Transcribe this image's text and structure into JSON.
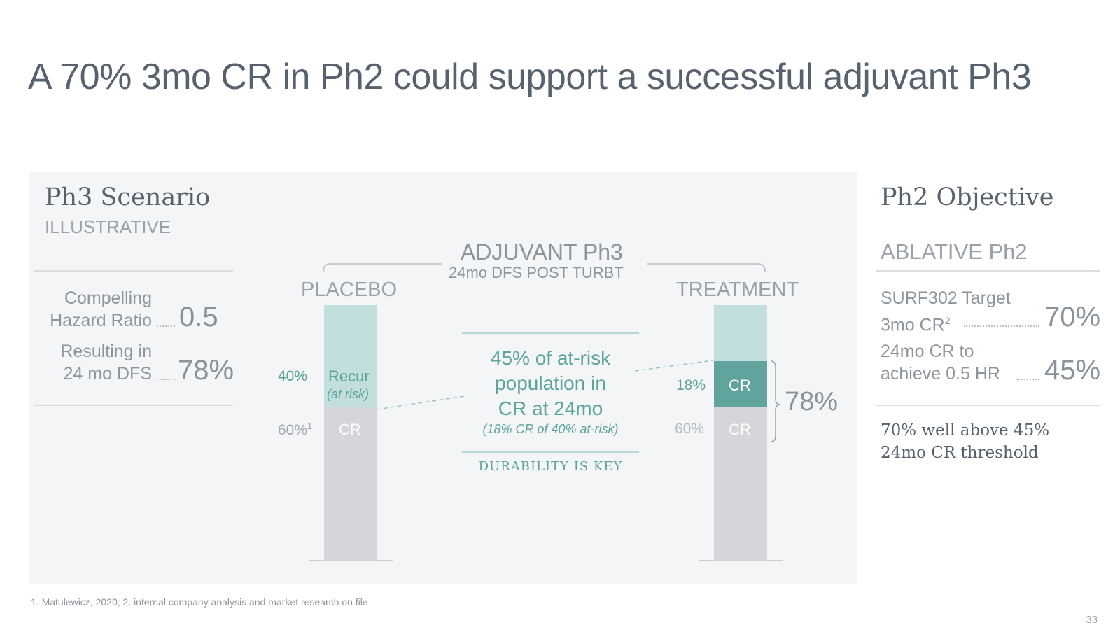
{
  "title": "A 70% 3mo CR in Ph2 could support a successful adjuvant Ph3",
  "left": {
    "heading": "Ph3 Scenario",
    "subheading": "ILLUSTRATIVE",
    "rows": [
      {
        "label_line1": "Compelling",
        "label_line2": "Hazard Ratio",
        "value": "0.5"
      },
      {
        "label_line1": "Resulting in",
        "label_line2": "24 mo DFS",
        "value": "78%"
      }
    ]
  },
  "center": {
    "heading": "ADJUVANT Ph3",
    "subheading": "24mo DFS POST TURBT",
    "placebo": {
      "label": "PLACEBO",
      "recur_pct": "40%",
      "recur_label": "Recur",
      "recur_note": "(at risk)",
      "cr_pct": "60%",
      "cr_sup": "1",
      "cr_label": "CR"
    },
    "treatment": {
      "label": "TREATMENT",
      "cr_new_pct": "18%",
      "cr_new_label": "CR",
      "cr_pct": "60%",
      "cr_label": "CR",
      "total": "78%"
    },
    "callout": {
      "line1": "45% of at-risk",
      "line2": "population in",
      "line3": "CR at 24mo",
      "note": "(18% CR of 40% at-risk)",
      "tagline": "DURABILITY IS KEY"
    }
  },
  "right": {
    "heading": "Ph2 Objective",
    "subheading": "ABLATIVE Ph2",
    "rows": [
      {
        "label_line1": "SURF302 Target",
        "label_line2": "3mo CR",
        "sup": "2",
        "value": "70%"
      },
      {
        "label_line1": "24mo CR to",
        "label_line2": "achieve 0.5 HR",
        "value": "45%"
      }
    ],
    "conclusion_line1": "70% well above 45%",
    "conclusion_line2": "24mo CR threshold"
  },
  "footnote": "1. Matulewicz, 2020; 2. internal company analysis and market research on file",
  "page_number": "33",
  "colors": {
    "teal": "#61a39d",
    "light_teal": "#c2dedd",
    "grey_bar": "#d4d6d9",
    "panel_bg": "#f4f5f7",
    "title": "#57626e"
  }
}
